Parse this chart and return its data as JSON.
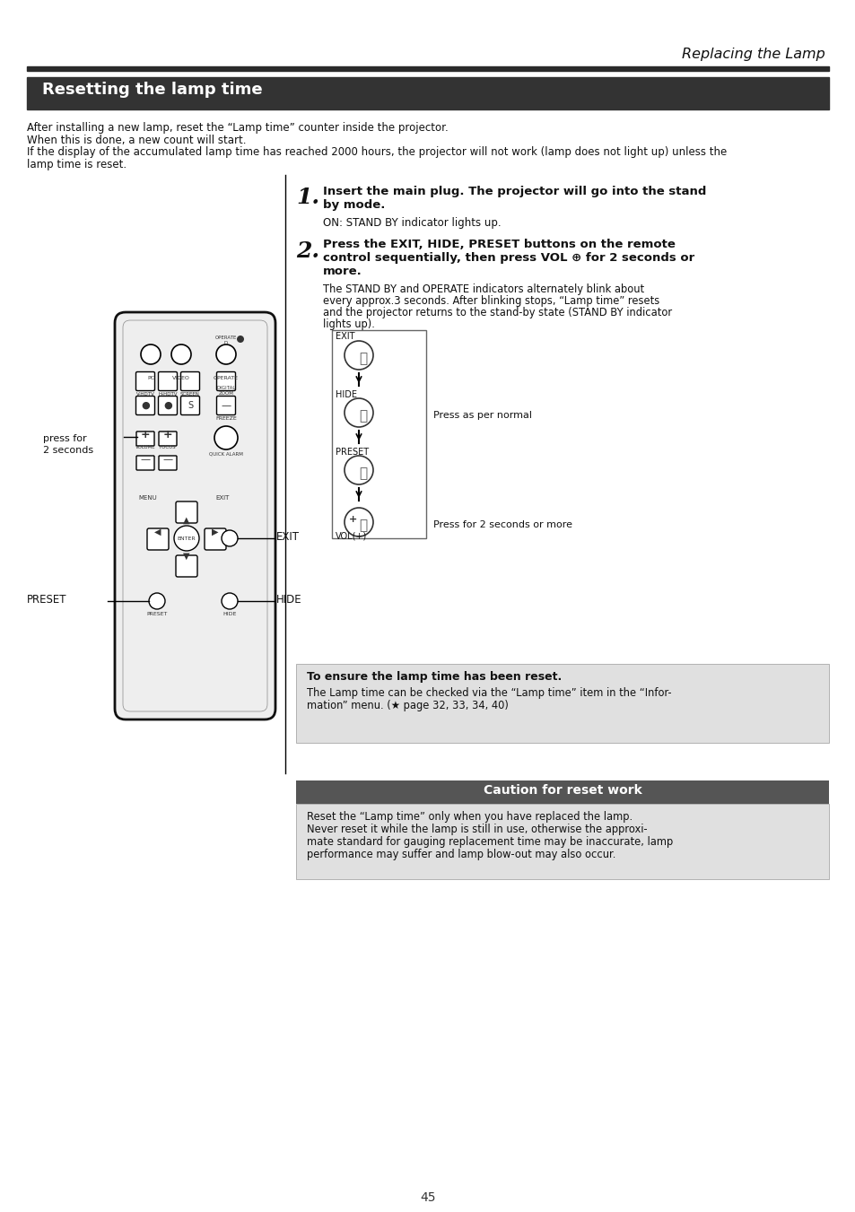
{
  "page_bg": "#ffffff",
  "header_italic": "Replacing the Lamp",
  "bar_color": "#2a2a2a",
  "section_bg": "#333333",
  "section_title": "Resetting the lamp time",
  "section_fg": "#ffffff",
  "intro1": "After installing a new lamp, reset the “Lamp time” counter inside the projector.",
  "intro2": "When this is done, a new count will start.",
  "intro3a": "If the display of the accumulated lamp time has reached 2000 hours, the projector will not work (lamp does not light up) unless the",
  "intro3b": "lamp time is reset.",
  "step1_num": "1.",
  "step1_bold1": "Insert the main plug. The projector will go into the stand",
  "step1_bold2": "by mode.",
  "step1_note": "ON: STAND BY indicator lights up.",
  "step2_num": "2.",
  "step2_bold1": "Press the EXIT, HIDE, PRESET buttons on the remote",
  "step2_bold2": "control sequentially, then press VOL ⊕ for 2 seconds or",
  "step2_bold3": "more.",
  "step2_note1": "The STAND BY and OPERATE indicators alternately blink about",
  "step2_note2": "every approx.3 seconds. After blinking stops, “Lamp time” resets",
  "step2_note3": "and the projector returns to the stand-by state (STAND BY indicator",
  "step2_note4": "lights up).",
  "diag_exit": "EXIT",
  "diag_hide": "HIDE",
  "diag_preset": "PRESET",
  "diag_vol": "VOL(+)",
  "diag_press_normal": "Press as per normal",
  "diag_press_2sec": "Press for 2 seconds or more",
  "left_press_for": "press for",
  "left_2sec": "2 seconds",
  "left_exit": "EXIT",
  "left_preset": "PRESET",
  "left_hide": "HIDE",
  "info_bg": "#e0e0e0",
  "info_bold": "To ensure the lamp time has been reset.",
  "info_text1": "The Lamp time can be checked via the “Lamp time” item in the “Infor-",
  "info_text2": "mation” menu. (★ page 32, 33, 34, 40)",
  "caution_bg": "#555555",
  "caution_fg": "#ffffff",
  "caution_title": "Caution for reset work",
  "caution_body_bg": "#e0e0e0",
  "caution1": "Reset the “Lamp time” only when you have replaced the lamp.",
  "caution2": "Never reset it while the lamp is still in use, otherwise the approxi-",
  "caution3": "mate standard for gauging replacement time may be inaccurate, lamp",
  "caution4": "performance may suffer and lamp blow-out may also occur.",
  "page_num": "45"
}
